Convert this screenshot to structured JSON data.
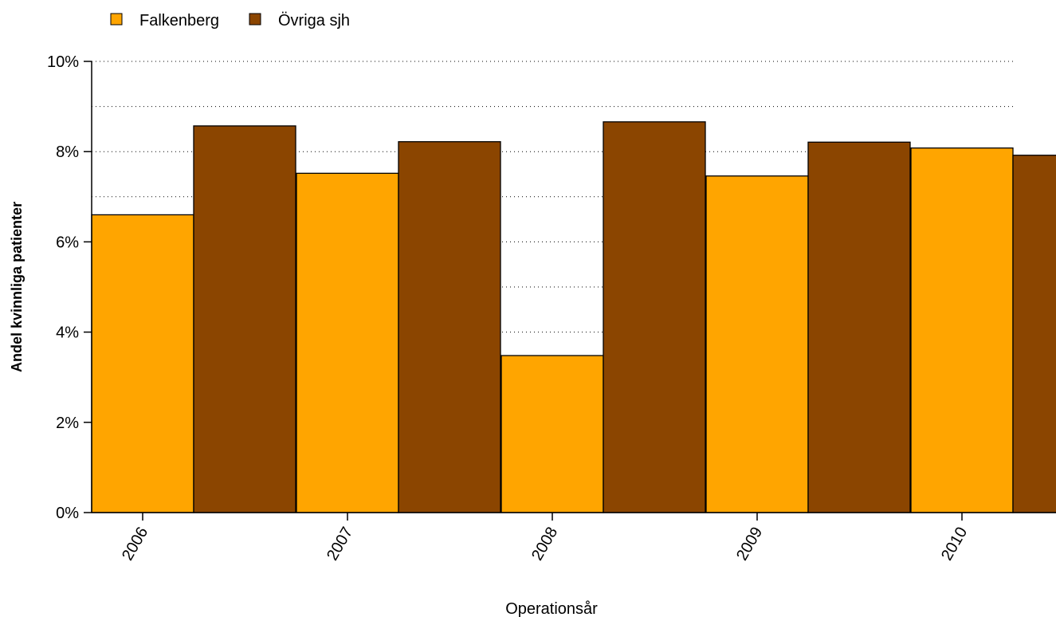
{
  "chart_data": {
    "type": "bar",
    "categories": [
      "2006",
      "2007",
      "2008",
      "2009",
      "2010"
    ],
    "series": [
      {
        "name": "Falkenberg",
        "values": [
          6.6,
          7.52,
          3.48,
          7.46,
          8.08
        ],
        "color": "#FFA500"
      },
      {
        "name": "Övriga sjh",
        "values": [
          8.57,
          8.22,
          8.66,
          8.21,
          7.92
        ],
        "color": "#8B4500"
      }
    ],
    "xlabel": "Operationsår",
    "ylabel": "Andel kvinnliga patienter",
    "ylim": [
      0,
      10
    ],
    "yticks": [
      0,
      2,
      4,
      6,
      8,
      10
    ],
    "ytick_labels": [
      "0%",
      "2%",
      "4%",
      "6%",
      "8%",
      "10%"
    ],
    "grid": "horizontal dotted every 1%",
    "legend_position": "top-left"
  }
}
